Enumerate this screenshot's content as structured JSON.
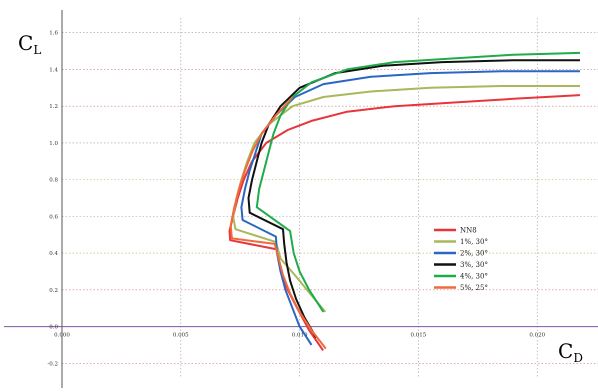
{
  "chart_data": {
    "type": "line",
    "title": "",
    "xlabel": {
      "main": "C",
      "sub": "D"
    },
    "ylabel": {
      "main": "C",
      "sub": "L"
    },
    "xlim": [
      0.0,
      0.0218
    ],
    "ylim": [
      -0.28,
      1.68
    ],
    "x_ticks": [
      {
        "value": 0.0,
        "label": "0.000"
      },
      {
        "value": 0.005,
        "label": "0.005"
      },
      {
        "value": 0.01,
        "label": "0.010"
      },
      {
        "value": 0.015,
        "label": "0.015"
      },
      {
        "value": 0.02,
        "label": "0.020"
      }
    ],
    "y_ticks": [
      {
        "value": -0.2,
        "label": "-0.2"
      },
      {
        "value": 0.0,
        "label": "0.0"
      },
      {
        "value": 0.2,
        "label": "0.2"
      },
      {
        "value": 0.4,
        "label": "0.4"
      },
      {
        "value": 0.6,
        "label": "0.6"
      },
      {
        "value": 0.8,
        "label": "0.8"
      },
      {
        "value": 1.0,
        "label": "1.0"
      },
      {
        "value": 1.2,
        "label": "1.2"
      },
      {
        "value": 1.4,
        "label": "1.4"
      },
      {
        "value": 1.6,
        "label": "1.6"
      }
    ],
    "grid": true,
    "legend_position": "bottom-right",
    "series": [
      {
        "name": "NN8",
        "color": "#e8343b",
        "points": [
          [
            0.01099,
            -0.13
          ],
          [
            0.0104,
            -0.02
          ],
          [
            0.0099,
            0.1
          ],
          [
            0.0095,
            0.2
          ],
          [
            0.0092,
            0.3
          ],
          [
            0.00905,
            0.42
          ],
          [
            0.00708,
            0.47
          ],
          [
            0.00705,
            0.52
          ],
          [
            0.0072,
            0.6
          ],
          [
            0.0074,
            0.7
          ],
          [
            0.00765,
            0.8
          ],
          [
            0.008,
            0.9
          ],
          [
            0.0086,
            1.0
          ],
          [
            0.0095,
            1.07
          ],
          [
            0.0105,
            1.12
          ],
          [
            0.012,
            1.17
          ],
          [
            0.014,
            1.2
          ],
          [
            0.0165,
            1.22
          ],
          [
            0.019,
            1.24
          ],
          [
            0.0218,
            1.26
          ]
        ]
      },
      {
        "name": "1%, 30°",
        "color": "#a8b85a",
        "points": [
          [
            0.01108,
            0.08
          ],
          [
            0.0105,
            0.17
          ],
          [
            0.0098,
            0.28
          ],
          [
            0.0092,
            0.37
          ],
          [
            0.009,
            0.46
          ],
          [
            0.0073,
            0.53
          ],
          [
            0.0072,
            0.6
          ],
          [
            0.00735,
            0.7
          ],
          [
            0.00755,
            0.8
          ],
          [
            0.0078,
            0.9
          ],
          [
            0.0081,
            1.0
          ],
          [
            0.0087,
            1.1
          ],
          [
            0.0097,
            1.2
          ],
          [
            0.011,
            1.25
          ],
          [
            0.013,
            1.28
          ],
          [
            0.0155,
            1.3
          ],
          [
            0.0185,
            1.31
          ],
          [
            0.0218,
            1.31
          ]
        ]
      },
      {
        "name": "2%, 30°",
        "color": "#2a66c4",
        "points": [
          [
            0.0105,
            -0.1
          ],
          [
            0.01,
            0.0
          ],
          [
            0.0097,
            0.1
          ],
          [
            0.0094,
            0.2
          ],
          [
            0.0092,
            0.3
          ],
          [
            0.00905,
            0.4
          ],
          [
            0.009,
            0.49
          ],
          [
            0.0076,
            0.58
          ],
          [
            0.00755,
            0.65
          ],
          [
            0.0077,
            0.75
          ],
          [
            0.0079,
            0.85
          ],
          [
            0.00815,
            0.95
          ],
          [
            0.0084,
            1.05
          ],
          [
            0.009,
            1.15
          ],
          [
            0.0098,
            1.25
          ],
          [
            0.011,
            1.32
          ],
          [
            0.013,
            1.36
          ],
          [
            0.0155,
            1.38
          ],
          [
            0.0185,
            1.39
          ],
          [
            0.0218,
            1.39
          ]
        ]
      },
      {
        "name": "3%, 30°",
        "color": "#111111",
        "points": [
          [
            0.0107,
            -0.06
          ],
          [
            0.0102,
            0.05
          ],
          [
            0.00985,
            0.15
          ],
          [
            0.0096,
            0.25
          ],
          [
            0.00945,
            0.35
          ],
          [
            0.00935,
            0.45
          ],
          [
            0.0093,
            0.53
          ],
          [
            0.0079,
            0.62
          ],
          [
            0.00785,
            0.7
          ],
          [
            0.008,
            0.8
          ],
          [
            0.0082,
            0.9
          ],
          [
            0.0084,
            1.0
          ],
          [
            0.0087,
            1.1
          ],
          [
            0.0092,
            1.2
          ],
          [
            0.01,
            1.3
          ],
          [
            0.0115,
            1.38
          ],
          [
            0.0135,
            1.42
          ],
          [
            0.016,
            1.44
          ],
          [
            0.019,
            1.45
          ],
          [
            0.0218,
            1.45
          ]
        ]
      },
      {
        "name": "4%, 30°",
        "color": "#1fab4a",
        "points": [
          [
            0.011,
            0.08
          ],
          [
            0.0104,
            0.2
          ],
          [
            0.01,
            0.3
          ],
          [
            0.00975,
            0.4
          ],
          [
            0.0096,
            0.52
          ],
          [
            0.0082,
            0.65
          ],
          [
            0.0083,
            0.75
          ],
          [
            0.0085,
            0.85
          ],
          [
            0.0087,
            0.95
          ],
          [
            0.0089,
            1.05
          ],
          [
            0.0092,
            1.15
          ],
          [
            0.0097,
            1.25
          ],
          [
            0.0105,
            1.33
          ],
          [
            0.012,
            1.4
          ],
          [
            0.014,
            1.44
          ],
          [
            0.0165,
            1.46
          ],
          [
            0.019,
            1.48
          ],
          [
            0.0218,
            1.49
          ]
        ]
      },
      {
        "name": "5%, 25°",
        "color": "#f06a3a",
        "points": [
          [
            0.0111,
            -0.12
          ],
          [
            0.0105,
            -0.02
          ],
          [
            0.01,
            0.08
          ],
          [
            0.0096,
            0.18
          ],
          [
            0.0093,
            0.28
          ],
          [
            0.0091,
            0.38
          ],
          [
            0.00895,
            0.45
          ],
          [
            0.00715,
            0.48
          ],
          [
            0.0071,
            0.55
          ],
          [
            0.00725,
            0.65
          ],
          [
            0.00745,
            0.75
          ],
          [
            0.0077,
            0.85
          ],
          [
            0.008,
            0.95
          ],
          [
            0.0084,
            1.05
          ],
          [
            0.009,
            1.15
          ],
          [
            0.0097,
            1.25
          ]
        ]
      }
    ]
  }
}
